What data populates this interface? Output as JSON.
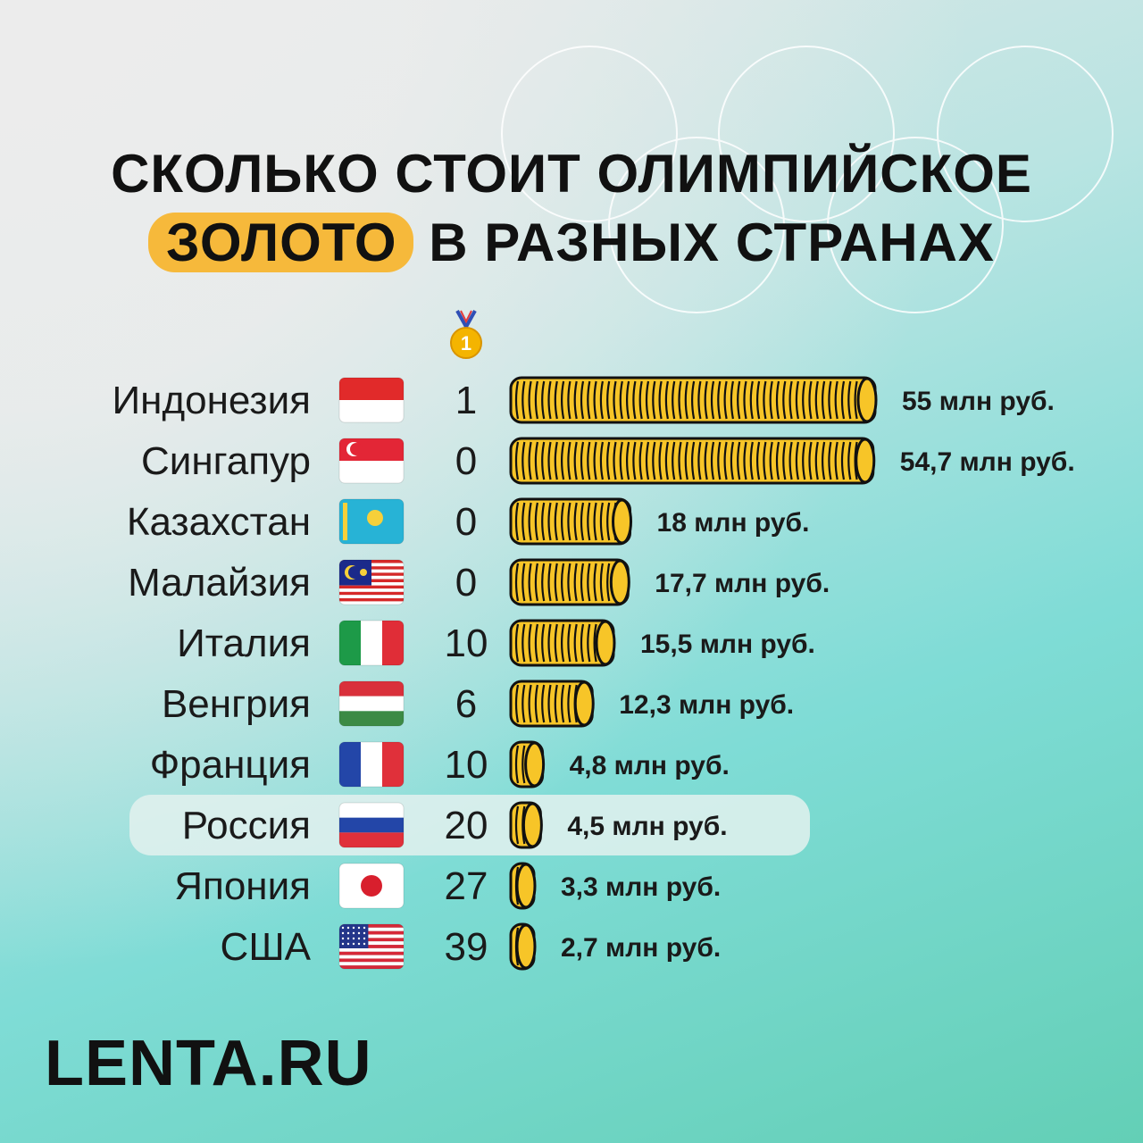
{
  "title": {
    "line1": "СКОЛЬКО СТОИТ ОЛИМПИЙСКОЕ",
    "highlight": "ЗОЛОТО",
    "line2_rest": "В РАЗНЫХ СТРАНАХ"
  },
  "medal_header": {
    "icon": "gold-medal-icon",
    "label": "1"
  },
  "highlight_country": "Россия",
  "colors": {
    "coin": "#f7c528",
    "coin_stroke": "#111111",
    "title_highlight": "#f6b93b",
    "row_highlight": "#e3f1ee"
  },
  "chart_data": {
    "type": "bar",
    "orientation": "horizontal",
    "categories": [
      "Индонезия",
      "Сингапур",
      "Казахстан",
      "Малайзия",
      "Италия",
      "Венгрия",
      "Франция",
      "Россия",
      "Япония",
      "США"
    ],
    "flags": [
      "flag-indonesia",
      "flag-singapore",
      "flag-kazakhstan",
      "flag-malaysia",
      "flag-italy",
      "flag-hungary",
      "flag-france",
      "flag-russia",
      "flag-japan",
      "flag-usa"
    ],
    "gold_medals": [
      1,
      0,
      0,
      0,
      10,
      6,
      10,
      20,
      27,
      39
    ],
    "values": [
      55,
      54.7,
      18,
      17.7,
      15.5,
      12.3,
      4.8,
      4.5,
      3.3,
      2.7
    ],
    "value_labels": [
      "55 млн руб.",
      "54,7 млн руб.",
      "18 млн руб.",
      "17,7 млн руб.",
      "15,5 млн руб.",
      "12,3 млн руб.",
      "4,8 млн руб.",
      "4,5 млн руб.",
      "3,3 млн руб.",
      "2,7 млн руб."
    ],
    "xlim": [
      0,
      55
    ]
  },
  "logo": "LENTA.RU"
}
